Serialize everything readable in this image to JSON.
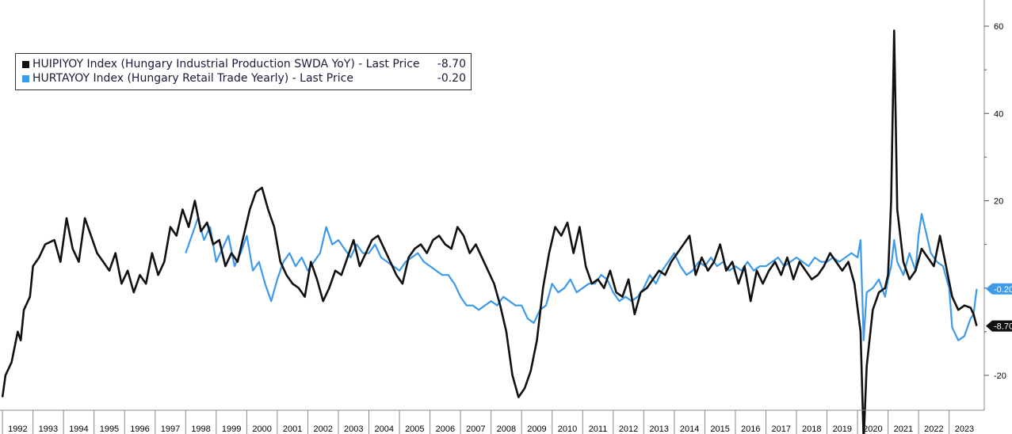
{
  "chart_data": {
    "type": "line",
    "x_categories": [
      "1992",
      "1993",
      "1994",
      "1995",
      "1996",
      "1997",
      "1998",
      "1999",
      "2000",
      "2001",
      "2002",
      "2003",
      "2004",
      "2005",
      "2006",
      "2007",
      "2008",
      "2009",
      "2010",
      "2011",
      "2012",
      "2013",
      "2014",
      "2015",
      "2016",
      "2017",
      "2018",
      "2019",
      "2020",
      "2021",
      "2022",
      "2023"
    ],
    "y_ticks": [
      60,
      40,
      20,
      -20
    ],
    "ylim": [
      -28,
      66
    ],
    "grid": false,
    "legend_position": "top-left",
    "series": [
      {
        "name": "HUIPIYOY Index (Hungary Industrial Production SWDA YoY) - Last Price",
        "last_value": "-8.70",
        "color": "#111111",
        "points": [
          [
            1992.0,
            -25
          ],
          [
            1992.1,
            -20
          ],
          [
            1992.3,
            -17
          ],
          [
            1992.5,
            -10
          ],
          [
            1992.6,
            -12
          ],
          [
            1992.7,
            -5
          ],
          [
            1992.9,
            -2
          ],
          [
            1993.0,
            5
          ],
          [
            1993.2,
            7
          ],
          [
            1993.4,
            10
          ],
          [
            1993.7,
            11
          ],
          [
            1993.9,
            6
          ],
          [
            1994.1,
            16
          ],
          [
            1994.3,
            9
          ],
          [
            1994.5,
            6
          ],
          [
            1994.7,
            16
          ],
          [
            1994.9,
            12
          ],
          [
            1995.1,
            8
          ],
          [
            1995.3,
            6
          ],
          [
            1995.5,
            4
          ],
          [
            1995.7,
            8
          ],
          [
            1995.9,
            1
          ],
          [
            1996.1,
            4
          ],
          [
            1996.3,
            -1
          ],
          [
            1996.5,
            3
          ],
          [
            1996.7,
            1
          ],
          [
            1996.9,
            8
          ],
          [
            1997.1,
            3
          ],
          [
            1997.3,
            6
          ],
          [
            1997.5,
            14
          ],
          [
            1997.7,
            12
          ],
          [
            1997.9,
            18
          ],
          [
            1998.1,
            14
          ],
          [
            1998.3,
            20
          ],
          [
            1998.5,
            13
          ],
          [
            1998.7,
            15
          ],
          [
            1998.9,
            10
          ],
          [
            1999.1,
            11
          ],
          [
            1999.3,
            5
          ],
          [
            1999.5,
            8
          ],
          [
            1999.7,
            6
          ],
          [
            1999.9,
            12
          ],
          [
            2000.1,
            18
          ],
          [
            2000.3,
            22
          ],
          [
            2000.5,
            23
          ],
          [
            2000.7,
            18
          ],
          [
            2000.9,
            14
          ],
          [
            2001.1,
            6
          ],
          [
            2001.3,
            3
          ],
          [
            2001.5,
            1
          ],
          [
            2001.7,
            0
          ],
          [
            2001.9,
            -2
          ],
          [
            2002.1,
            6
          ],
          [
            2002.3,
            2
          ],
          [
            2002.5,
            -3
          ],
          [
            2002.7,
            0
          ],
          [
            2002.9,
            4
          ],
          [
            2003.1,
            3
          ],
          [
            2003.3,
            7
          ],
          [
            2003.5,
            11
          ],
          [
            2003.7,
            5
          ],
          [
            2003.9,
            8
          ],
          [
            2004.1,
            11
          ],
          [
            2004.3,
            12
          ],
          [
            2004.5,
            9
          ],
          [
            2004.7,
            6
          ],
          [
            2004.9,
            3
          ],
          [
            2005.1,
            1
          ],
          [
            2005.3,
            7
          ],
          [
            2005.5,
            9
          ],
          [
            2005.7,
            10
          ],
          [
            2005.9,
            8
          ],
          [
            2006.1,
            11
          ],
          [
            2006.3,
            12
          ],
          [
            2006.5,
            10
          ],
          [
            2006.7,
            9
          ],
          [
            2006.9,
            14
          ],
          [
            2007.1,
            12
          ],
          [
            2007.3,
            8
          ],
          [
            2007.5,
            10
          ],
          [
            2007.7,
            7
          ],
          [
            2007.9,
            4
          ],
          [
            2008.1,
            1
          ],
          [
            2008.3,
            -4
          ],
          [
            2008.5,
            -10
          ],
          [
            2008.7,
            -20
          ],
          [
            2008.9,
            -25
          ],
          [
            2009.1,
            -23
          ],
          [
            2009.3,
            -19
          ],
          [
            2009.5,
            -12
          ],
          [
            2009.7,
            0
          ],
          [
            2009.9,
            8
          ],
          [
            2010.1,
            14
          ],
          [
            2010.3,
            12
          ],
          [
            2010.5,
            15
          ],
          [
            2010.7,
            8
          ],
          [
            2010.9,
            14
          ],
          [
            2011.1,
            5
          ],
          [
            2011.3,
            1
          ],
          [
            2011.5,
            2
          ],
          [
            2011.7,
            0
          ],
          [
            2011.9,
            4
          ],
          [
            2012.1,
            -1
          ],
          [
            2012.3,
            -2
          ],
          [
            2012.5,
            2
          ],
          [
            2012.7,
            -6
          ],
          [
            2012.9,
            -1
          ],
          [
            2013.1,
            0
          ],
          [
            2013.3,
            2
          ],
          [
            2013.5,
            4
          ],
          [
            2013.7,
            3
          ],
          [
            2013.9,
            6
          ],
          [
            2014.1,
            8
          ],
          [
            2014.3,
            10
          ],
          [
            2014.5,
            12
          ],
          [
            2014.7,
            3
          ],
          [
            2014.9,
            7
          ],
          [
            2015.1,
            4
          ],
          [
            2015.3,
            6
          ],
          [
            2015.5,
            10
          ],
          [
            2015.7,
            4
          ],
          [
            2015.9,
            6
          ],
          [
            2016.1,
            1
          ],
          [
            2016.3,
            5
          ],
          [
            2016.5,
            -3
          ],
          [
            2016.7,
            4
          ],
          [
            2016.9,
            1
          ],
          [
            2017.1,
            4
          ],
          [
            2017.3,
            6
          ],
          [
            2017.5,
            3
          ],
          [
            2017.7,
            7
          ],
          [
            2017.9,
            2
          ],
          [
            2018.1,
            6
          ],
          [
            2018.3,
            4
          ],
          [
            2018.5,
            2
          ],
          [
            2018.7,
            3
          ],
          [
            2018.9,
            5
          ],
          [
            2019.1,
            8
          ],
          [
            2019.3,
            6
          ],
          [
            2019.5,
            4
          ],
          [
            2019.7,
            6
          ],
          [
            2019.9,
            1
          ],
          [
            2020.1,
            -10
          ],
          [
            2020.2,
            -35
          ],
          [
            2020.3,
            -18
          ],
          [
            2020.5,
            -5
          ],
          [
            2020.7,
            -1
          ],
          [
            2020.9,
            0
          ],
          [
            2021.0,
            3
          ],
          [
            2021.1,
            20
          ],
          [
            2021.2,
            59
          ],
          [
            2021.3,
            18
          ],
          [
            2021.5,
            6
          ],
          [
            2021.7,
            2
          ],
          [
            2021.9,
            4
          ],
          [
            2022.1,
            9
          ],
          [
            2022.3,
            7
          ],
          [
            2022.5,
            5
          ],
          [
            2022.7,
            12
          ],
          [
            2022.9,
            5
          ],
          [
            2023.1,
            -2
          ],
          [
            2023.3,
            -5
          ],
          [
            2023.5,
            -4
          ],
          [
            2023.7,
            -4.5
          ],
          [
            2023.8,
            -6
          ],
          [
            2023.9,
            -8.7
          ]
        ]
      },
      {
        "name": "HURTAYOY Index (Hungary Retail Trade Yearly) - Last Price",
        "last_value": "-0.20",
        "color": "#3d9ae8",
        "points": [
          [
            1998.0,
            8
          ],
          [
            1998.2,
            12
          ],
          [
            1998.4,
            16
          ],
          [
            1998.6,
            11
          ],
          [
            1998.8,
            14
          ],
          [
            1999.0,
            6
          ],
          [
            1999.2,
            9
          ],
          [
            1999.4,
            12
          ],
          [
            1999.6,
            5
          ],
          [
            1999.8,
            8
          ],
          [
            2000.0,
            12
          ],
          [
            2000.2,
            4
          ],
          [
            2000.4,
            6
          ],
          [
            2000.6,
            1
          ],
          [
            2000.8,
            -3
          ],
          [
            2001.0,
            2
          ],
          [
            2001.2,
            6
          ],
          [
            2001.4,
            8
          ],
          [
            2001.6,
            5
          ],
          [
            2001.8,
            7
          ],
          [
            2002.0,
            4
          ],
          [
            2002.2,
            6
          ],
          [
            2002.4,
            8
          ],
          [
            2002.6,
            14
          ],
          [
            2002.8,
            10
          ],
          [
            2003.0,
            11
          ],
          [
            2003.2,
            9
          ],
          [
            2003.4,
            7
          ],
          [
            2003.6,
            10
          ],
          [
            2003.8,
            8
          ],
          [
            2004.0,
            8
          ],
          [
            2004.2,
            10
          ],
          [
            2004.4,
            7
          ],
          [
            2004.6,
            6
          ],
          [
            2004.8,
            5
          ],
          [
            2005.0,
            4
          ],
          [
            2005.2,
            6
          ],
          [
            2005.4,
            7
          ],
          [
            2005.6,
            8
          ],
          [
            2005.8,
            6
          ],
          [
            2006.0,
            5
          ],
          [
            2006.2,
            4
          ],
          [
            2006.4,
            3
          ],
          [
            2006.6,
            3
          ],
          [
            2006.8,
            1
          ],
          [
            2007.0,
            -2
          ],
          [
            2007.2,
            -4
          ],
          [
            2007.4,
            -4
          ],
          [
            2007.6,
            -5
          ],
          [
            2007.8,
            -4
          ],
          [
            2008.0,
            -3
          ],
          [
            2008.2,
            -4
          ],
          [
            2008.4,
            -2
          ],
          [
            2008.6,
            -3
          ],
          [
            2008.8,
            -4
          ],
          [
            2009.0,
            -4
          ],
          [
            2009.2,
            -7
          ],
          [
            2009.4,
            -8
          ],
          [
            2009.6,
            -5
          ],
          [
            2009.8,
            -4
          ],
          [
            2010.0,
            1
          ],
          [
            2010.2,
            -1
          ],
          [
            2010.4,
            0
          ],
          [
            2010.6,
            2
          ],
          [
            2010.8,
            -1
          ],
          [
            2011.0,
            0
          ],
          [
            2011.2,
            1
          ],
          [
            2011.4,
            1
          ],
          [
            2011.6,
            3
          ],
          [
            2011.8,
            2
          ],
          [
            2012.0,
            -1
          ],
          [
            2012.2,
            -3
          ],
          [
            2012.4,
            -2
          ],
          [
            2012.6,
            -3
          ],
          [
            2012.8,
            -2
          ],
          [
            2013.0,
            0
          ],
          [
            2013.2,
            3
          ],
          [
            2013.4,
            1
          ],
          [
            2013.6,
            4
          ],
          [
            2013.8,
            6
          ],
          [
            2014.0,
            8
          ],
          [
            2014.2,
            5
          ],
          [
            2014.4,
            3
          ],
          [
            2014.6,
            4
          ],
          [
            2014.8,
            6
          ],
          [
            2015.0,
            5
          ],
          [
            2015.2,
            7
          ],
          [
            2015.4,
            5
          ],
          [
            2015.6,
            6
          ],
          [
            2015.8,
            4
          ],
          [
            2016.0,
            5
          ],
          [
            2016.2,
            4
          ],
          [
            2016.4,
            6
          ],
          [
            2016.6,
            4
          ],
          [
            2016.8,
            5
          ],
          [
            2017.0,
            5
          ],
          [
            2017.2,
            6
          ],
          [
            2017.4,
            7
          ],
          [
            2017.6,
            5
          ],
          [
            2017.8,
            6
          ],
          [
            2018.0,
            7
          ],
          [
            2018.2,
            6
          ],
          [
            2018.4,
            5
          ],
          [
            2018.6,
            7
          ],
          [
            2018.8,
            6
          ],
          [
            2019.0,
            6
          ],
          [
            2019.2,
            7
          ],
          [
            2019.4,
            6
          ],
          [
            2019.6,
            7
          ],
          [
            2019.8,
            8
          ],
          [
            2020.0,
            7
          ],
          [
            2020.1,
            11
          ],
          [
            2020.2,
            -12
          ],
          [
            2020.3,
            -1
          ],
          [
            2020.5,
            0
          ],
          [
            2020.7,
            2
          ],
          [
            2020.9,
            -2
          ],
          [
            2021.0,
            2
          ],
          [
            2021.1,
            5
          ],
          [
            2021.2,
            11
          ],
          [
            2021.3,
            6
          ],
          [
            2021.5,
            3
          ],
          [
            2021.7,
            8
          ],
          [
            2021.9,
            4
          ],
          [
            2022.0,
            12
          ],
          [
            2022.1,
            17
          ],
          [
            2022.2,
            14
          ],
          [
            2022.4,
            8
          ],
          [
            2022.6,
            6
          ],
          [
            2022.8,
            5
          ],
          [
            2023.0,
            0
          ],
          [
            2023.1,
            -9
          ],
          [
            2023.3,
            -12
          ],
          [
            2023.5,
            -11
          ],
          [
            2023.7,
            -7
          ],
          [
            2023.8,
            -6
          ],
          [
            2023.9,
            -0.2
          ]
        ]
      }
    ]
  }
}
